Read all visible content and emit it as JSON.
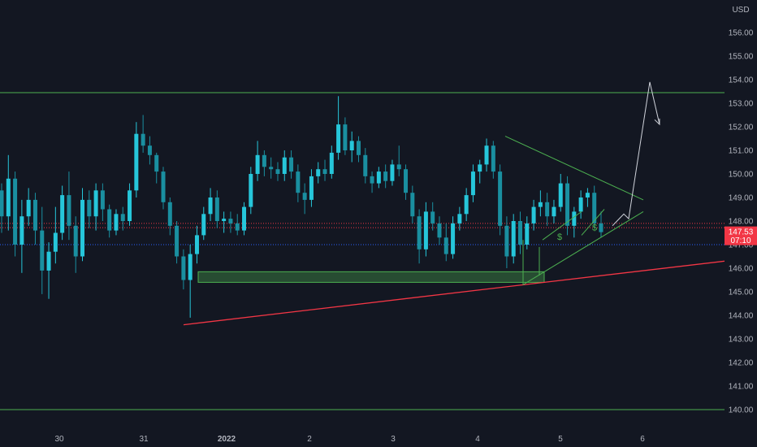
{
  "chart_data": {
    "type": "candlestick",
    "currency_label": "USD",
    "x_ticks": [
      "30",
      "31",
      "2022",
      "2",
      "3",
      "4",
      "5",
      "6"
    ],
    "y_ticks": [
      "156.00",
      "155.00",
      "154.00",
      "153.00",
      "152.00",
      "151.00",
      "150.00",
      "149.00",
      "148.00",
      "147.00",
      "146.00",
      "145.00",
      "144.00",
      "143.00",
      "142.00",
      "141.00",
      "140.00"
    ],
    "ylim": [
      139.6,
      156.6
    ],
    "price_label": "147.53",
    "countdown_label": "07:10",
    "candle_color": "#26c6da",
    "candle_down_color": "#1a8fa0",
    "candles": [
      [
        149.3,
        149.6,
        147.5,
        148.2
      ],
      [
        148.2,
        150.8,
        147.6,
        149.8
      ],
      [
        149.8,
        150.1,
        146.5,
        147.0
      ],
      [
        147.0,
        148.9,
        145.8,
        148.2
      ],
      [
        148.2,
        149.4,
        147.8,
        148.9
      ],
      [
        148.9,
        149.2,
        147.0,
        147.6
      ],
      [
        147.6,
        148.6,
        144.9,
        145.9
      ],
      [
        145.9,
        147.1,
        144.7,
        146.7
      ],
      [
        146.7,
        148.6,
        146.2,
        147.5
      ],
      [
        147.5,
        149.5,
        147.2,
        149.1
      ],
      [
        149.1,
        150.1,
        147.2,
        147.8
      ],
      [
        147.8,
        148.2,
        145.8,
        146.5
      ],
      [
        146.5,
        149.4,
        146.3,
        148.9
      ],
      [
        148.9,
        149.3,
        147.7,
        148.2
      ],
      [
        148.2,
        149.6,
        147.6,
        149.3
      ],
      [
        149.3,
        149.6,
        148.0,
        148.5
      ],
      [
        148.5,
        148.7,
        147.3,
        147.6
      ],
      [
        147.6,
        148.5,
        147.4,
        148.3
      ],
      [
        148.3,
        148.6,
        147.6,
        148.0
      ],
      [
        148.0,
        149.6,
        147.8,
        149.3
      ],
      [
        149.3,
        152.2,
        149.0,
        151.7
      ],
      [
        151.7,
        152.5,
        150.9,
        151.2
      ],
      [
        151.2,
        151.6,
        150.4,
        150.8
      ],
      [
        150.8,
        150.9,
        149.6,
        150.1
      ],
      [
        150.1,
        150.3,
        148.5,
        148.8
      ],
      [
        148.8,
        149.0,
        147.4,
        147.8
      ],
      [
        147.8,
        148.0,
        146.2,
        146.5
      ],
      [
        146.5,
        146.8,
        145.1,
        145.5
      ],
      [
        145.5,
        147.0,
        143.9,
        146.6
      ],
      [
        146.6,
        147.8,
        146.2,
        147.4
      ],
      [
        147.4,
        148.6,
        147.2,
        148.3
      ],
      [
        148.3,
        149.4,
        148.0,
        149.0
      ],
      [
        149.0,
        149.3,
        147.7,
        148.0
      ],
      [
        148.0,
        148.4,
        147.5,
        148.1
      ],
      [
        148.1,
        148.4,
        147.5,
        147.9
      ],
      [
        147.9,
        148.3,
        147.4,
        147.6
      ],
      [
        147.6,
        148.8,
        147.4,
        148.6
      ],
      [
        148.6,
        150.3,
        148.3,
        150.0
      ],
      [
        150.0,
        151.4,
        149.7,
        150.8
      ],
      [
        150.8,
        151.0,
        149.9,
        150.3
      ],
      [
        150.3,
        150.7,
        149.8,
        150.2
      ],
      [
        150.2,
        150.5,
        149.7,
        150.0
      ],
      [
        150.0,
        151.0,
        149.7,
        150.7
      ],
      [
        150.7,
        151.0,
        149.8,
        150.1
      ],
      [
        150.1,
        150.4,
        148.8,
        149.2
      ],
      [
        149.2,
        149.6,
        148.3,
        148.9
      ],
      [
        148.9,
        150.2,
        148.6,
        149.9
      ],
      [
        149.9,
        150.5,
        149.6,
        150.2
      ],
      [
        150.2,
        150.6,
        149.7,
        150.0
      ],
      [
        150.0,
        151.2,
        149.8,
        150.9
      ],
      [
        150.9,
        153.3,
        150.6,
        152.1
      ],
      [
        152.1,
        152.4,
        150.8,
        151.0
      ],
      [
        151.0,
        151.8,
        150.5,
        151.4
      ],
      [
        151.4,
        151.6,
        150.5,
        150.8
      ],
      [
        150.8,
        151.1,
        149.6,
        149.9
      ],
      [
        149.9,
        150.1,
        149.2,
        149.6
      ],
      [
        149.6,
        150.3,
        149.4,
        150.1
      ],
      [
        150.1,
        150.4,
        149.4,
        149.7
      ],
      [
        149.7,
        150.6,
        149.5,
        150.4
      ],
      [
        150.4,
        151.2,
        149.9,
        150.2
      ],
      [
        150.2,
        150.4,
        148.9,
        149.2
      ],
      [
        149.2,
        149.5,
        147.9,
        148.2
      ],
      [
        148.2,
        148.5,
        146.2,
        146.8
      ],
      [
        146.8,
        148.8,
        146.5,
        148.4
      ],
      [
        148.4,
        148.8,
        147.6,
        147.9
      ],
      [
        147.9,
        148.2,
        147.0,
        147.3
      ],
      [
        147.3,
        147.9,
        146.3,
        146.6
      ],
      [
        146.6,
        148.2,
        146.4,
        147.9
      ],
      [
        147.9,
        148.6,
        147.6,
        148.3
      ],
      [
        148.3,
        149.4,
        148.0,
        149.1
      ],
      [
        149.1,
        150.4,
        148.8,
        150.1
      ],
      [
        150.1,
        150.6,
        149.6,
        150.4
      ],
      [
        150.4,
        151.5,
        150.1,
        151.2
      ],
      [
        151.2,
        151.4,
        149.8,
        150.1
      ],
      [
        150.1,
        150.4,
        147.4,
        147.8
      ],
      [
        147.8,
        148.2,
        146.0,
        146.5
      ],
      [
        146.5,
        148.3,
        146.2,
        148.0
      ],
      [
        148.0,
        148.4,
        146.6,
        147.0
      ],
      [
        147.0,
        148.2,
        146.8,
        147.9
      ],
      [
        147.9,
        148.9,
        147.6,
        148.6
      ],
      [
        148.6,
        149.3,
        148.2,
        148.8
      ],
      [
        148.8,
        149.2,
        147.8,
        148.2
      ],
      [
        148.2,
        148.9,
        147.9,
        148.6
      ],
      [
        148.6,
        150.0,
        148.4,
        149.6
      ],
      [
        149.6,
        149.9,
        147.4,
        147.8
      ],
      [
        147.8,
        148.6,
        147.3,
        148.4
      ],
      [
        148.4,
        149.3,
        148.1,
        149.0
      ],
      [
        149.0,
        149.4,
        148.6,
        149.2
      ],
      [
        149.2,
        149.5,
        147.7,
        147.9
      ],
      [
        147.9,
        148.4,
        147.3,
        147.53
      ]
    ],
    "horizontal_levels": [
      {
        "value": 153.45,
        "color": "#4caf50"
      },
      {
        "value": 140.0,
        "color": "#4caf50"
      }
    ],
    "dotted_levels": [
      {
        "value": 147.9,
        "color": "#f23645"
      },
      {
        "value": 147.72,
        "color": "#f23645"
      },
      {
        "value": 147.0,
        "color": "#2962ff"
      }
    ],
    "support_trendline": {
      "color": "#f23645",
      "from": [
        0,
        143.6
      ],
      "to": [
        1,
        146.2
      ]
    },
    "demand_zone": {
      "top": 145.85,
      "bottom": 145.4,
      "color": "#4caf50"
    },
    "triangle": {
      "color": "#4caf50"
    },
    "forecast_path": {
      "color": "#d1d4dc"
    },
    "annotation_symbol": "$"
  }
}
